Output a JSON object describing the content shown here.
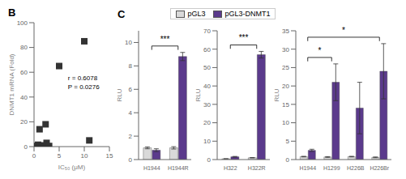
{
  "chart_data": [
    {
      "type": "scatter",
      "title": "B",
      "x": [
        0.5,
        0.8,
        1.0,
        1.1,
        1.2,
        1.5,
        1.7,
        1.9,
        2.0,
        2.1,
        2.3,
        2.5,
        3.0,
        5.0,
        10.0,
        11.0
      ],
      "values": [
        0.5,
        1.5,
        0.3,
        14.0,
        0.5,
        0.5,
        1.0,
        0.5,
        0.3,
        0.5,
        18.0,
        3.0,
        0.5,
        65.0,
        85.0,
        5.0
      ],
      "color": "#333333",
      "marker": "square",
      "xlim": [
        0,
        15
      ],
      "ylim": [
        0,
        100
      ],
      "xticks": [
        0,
        5,
        10,
        15
      ],
      "yticks": [
        0,
        20,
        40,
        60,
        80,
        100
      ],
      "x_label": "IC₅₀ (μM)",
      "y_label": "DNMT1 mRNA (Fold)",
      "annotations": [
        "r = 0.6078",
        "P = 0.0276"
      ]
    },
    {
      "type": "bar",
      "title": "C",
      "categories": [
        "H1944",
        "H1944R"
      ],
      "series": [
        {
          "name": "pGL3",
          "color": "#d9d9d9",
          "values": [
            1.0,
            1.0
          ],
          "errors": [
            0.08,
            0.1
          ]
        },
        {
          "name": "pGL3-DNMT1",
          "color": "#5b3a8c",
          "values": [
            0.8,
            8.8
          ],
          "errors": [
            0.12,
            0.35
          ]
        }
      ],
      "ylim": [
        0,
        11
      ],
      "yticks": [
        0,
        2,
        4,
        6,
        8,
        10
      ],
      "y_label": "RLU",
      "legend": "top",
      "annotations": [
        {
          "text": "***",
          "from": "H1944",
          "to": "H1944R"
        }
      ]
    },
    {
      "type": "bar",
      "categories": [
        "H322",
        "H322R"
      ],
      "series": [
        {
          "name": "pGL3",
          "color": "#d9d9d9",
          "values": [
            0.4,
            1.0
          ],
          "errors": [
            0.05,
            0.1
          ]
        },
        {
          "name": "pGL3-DNMT1",
          "color": "#5b3a8c",
          "values": [
            1.5,
            57.0
          ],
          "errors": [
            0.2,
            1.8
          ]
        }
      ],
      "ylim": [
        0,
        70
      ],
      "yticks": [
        0,
        10,
        20,
        30,
        40,
        50,
        60,
        70
      ],
      "y_label": "RLU",
      "legend": "top",
      "annotations": [
        {
          "text": "***",
          "from": "H322",
          "to": "H322R"
        }
      ]
    },
    {
      "type": "bar",
      "categories": [
        "H1944",
        "H1299",
        "H226B",
        "H226Br"
      ],
      "series": [
        {
          "name": "pGL3",
          "color": "#d9d9d9",
          "values": [
            0.8,
            0.7,
            0.8,
            0.6
          ],
          "errors": [
            0.08,
            0.1,
            0.08,
            0.1
          ]
        },
        {
          "name": "pGL3-DNMT1",
          "color": "#5b3a8c",
          "values": [
            2.5,
            21.0,
            14.0,
            24.0
          ],
          "errors": [
            0.3,
            5.0,
            7.0,
            7.5
          ]
        }
      ],
      "ylim": [
        0,
        35
      ],
      "yticks": [
        0,
        5,
        10,
        15,
        20,
        25,
        30,
        35
      ],
      "y_label": "RLU",
      "legend": "top",
      "annotations": [
        {
          "text": "*",
          "from": "H1944",
          "to": "H1299"
        },
        {
          "text": "*",
          "from": "H1944",
          "to": "H226Br"
        }
      ]
    }
  ]
}
